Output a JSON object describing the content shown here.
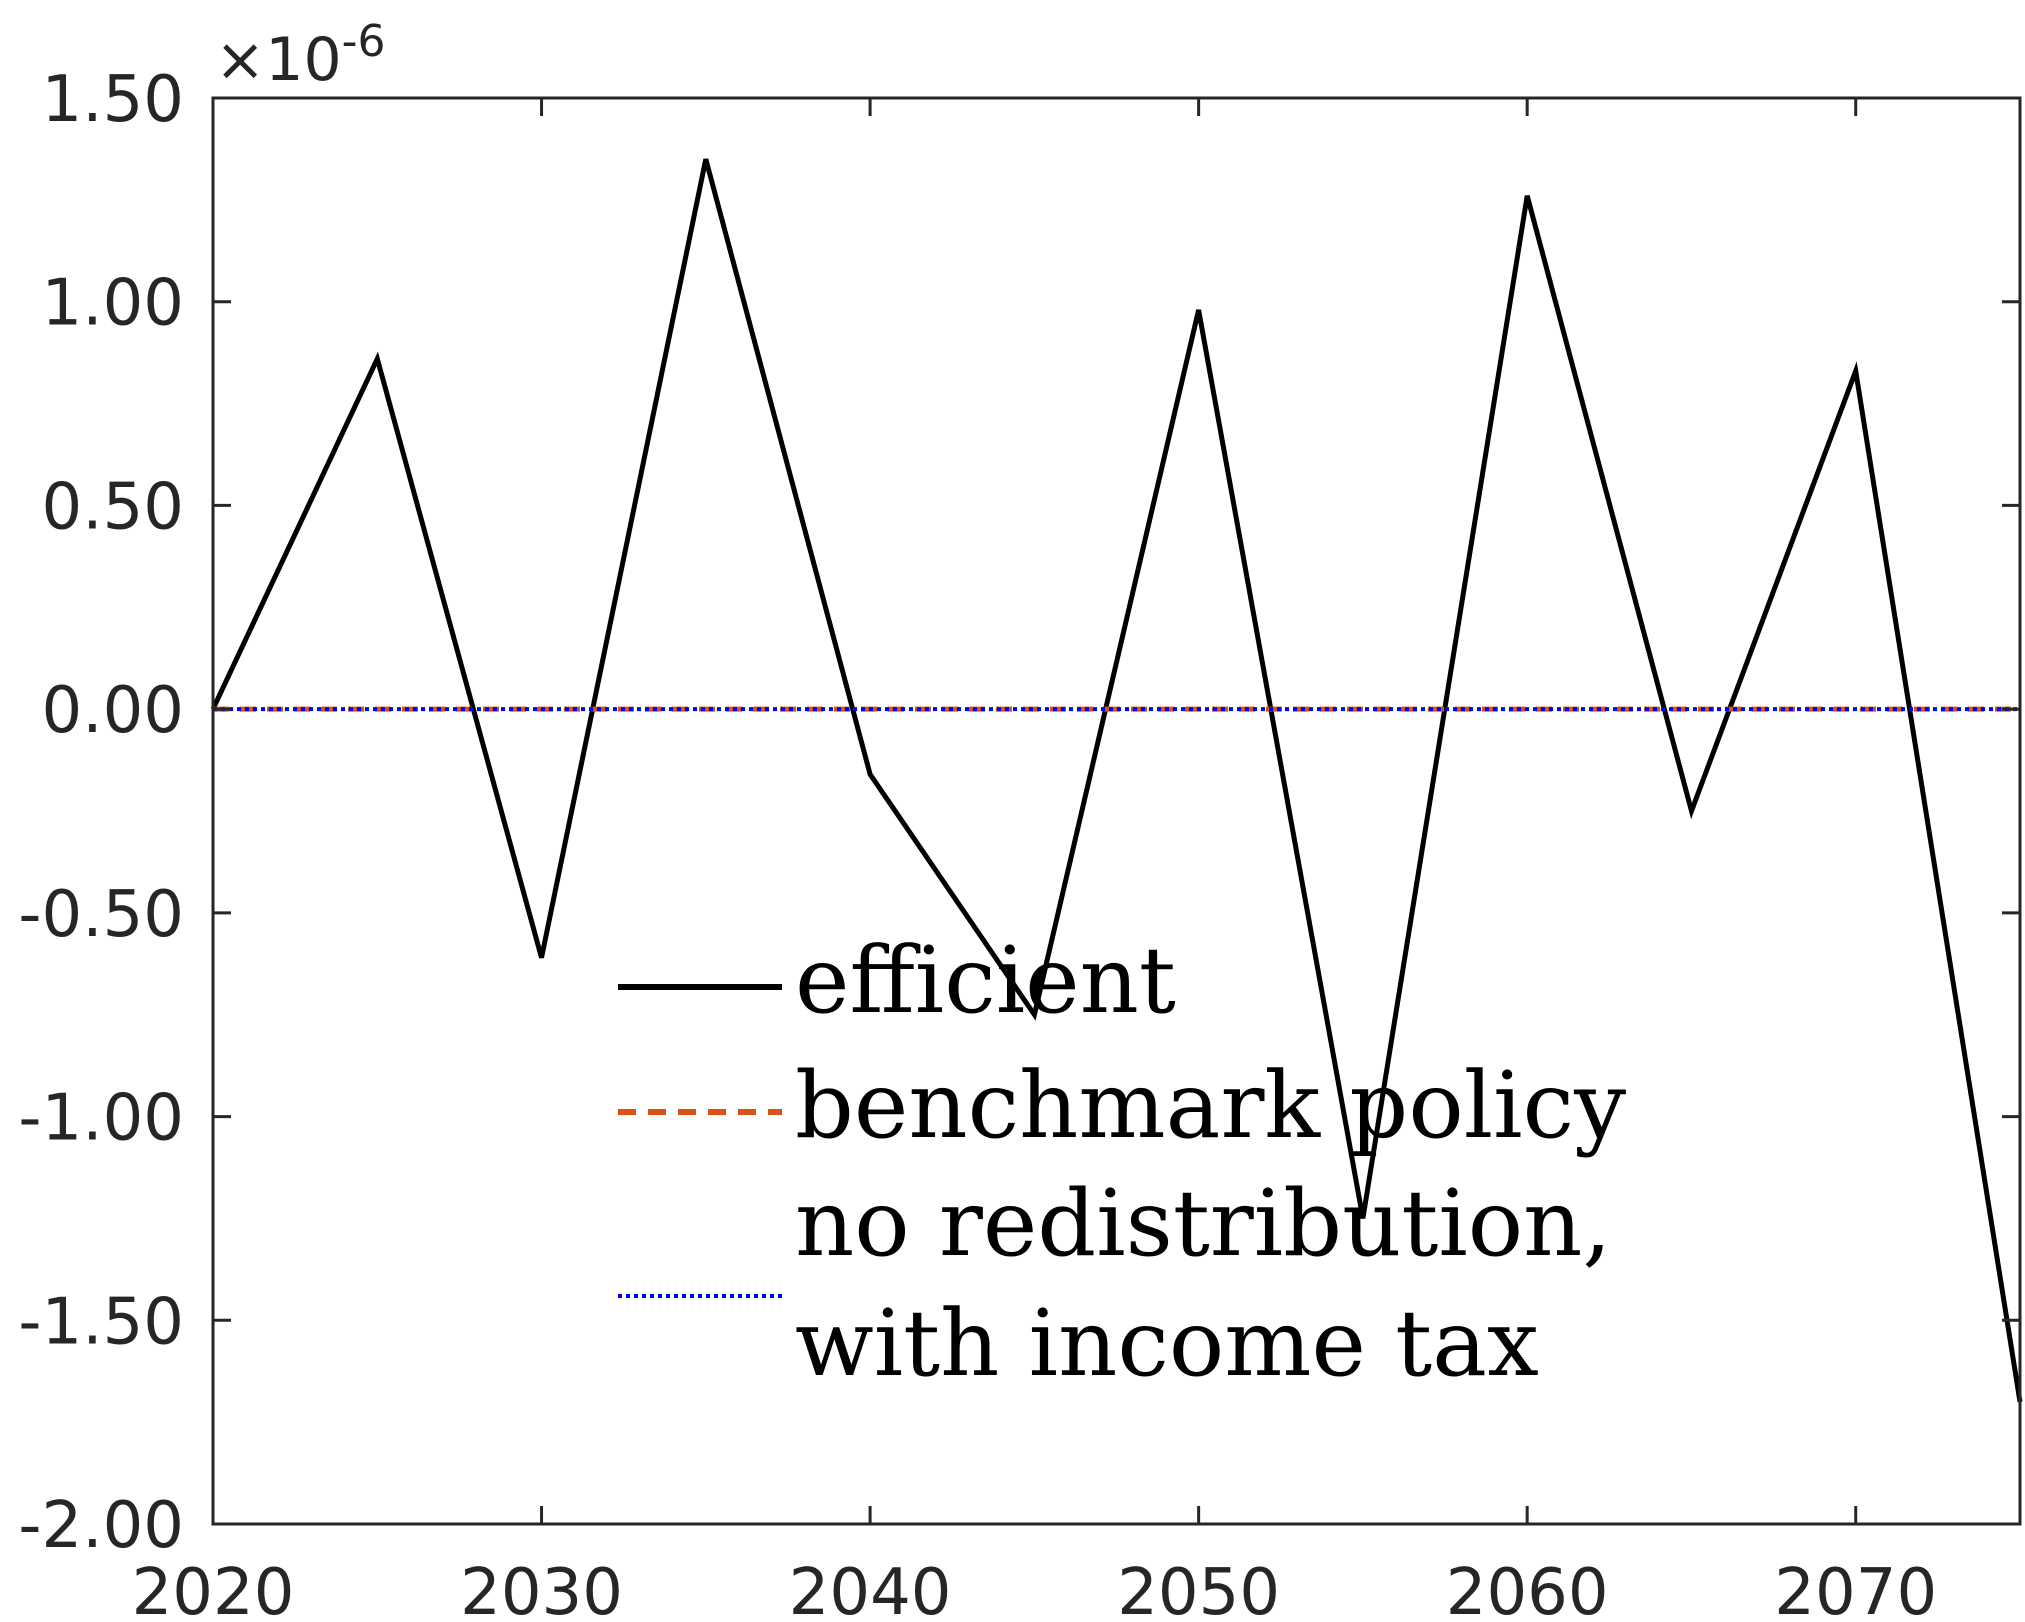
{
  "chart_data": {
    "type": "line",
    "title": "",
    "xlabel": "",
    "ylabel": "",
    "y_multiplier_prefix": "×10",
    "y_multiplier_exponent": "-6",
    "xlim": [
      2020,
      2075
    ],
    "ylim": [
      -2.0,
      1.5
    ],
    "x_ticks": [
      2020,
      2030,
      2040,
      2050,
      2060,
      2070
    ],
    "x_tick_labels": [
      "2020",
      "2030",
      "2040",
      "2050",
      "2060",
      "2070"
    ],
    "y_ticks": [
      1.5,
      1.0,
      0.5,
      0.0,
      -0.5,
      -1.0,
      -1.5,
      -2.0
    ],
    "y_tick_labels": [
      "1.50",
      "1.00",
      "0.50",
      "0.00",
      "-0.50",
      "-1.00",
      "-1.50",
      "-2.00"
    ],
    "grid": false,
    "legend_position": "center",
    "series": [
      {
        "name": "efficient",
        "color": "#000000",
        "style": "solid",
        "x": [
          2020,
          2025,
          2030,
          2035,
          2040,
          2045,
          2050,
          2055,
          2060,
          2065,
          2070,
          2075
        ],
        "y": [
          0.0,
          0.86,
          -0.61,
          1.35,
          -0.16,
          -0.75,
          0.98,
          -1.25,
          1.26,
          -0.25,
          0.83,
          -1.7
        ]
      },
      {
        "name": "benchmark policy",
        "color": "#D95319",
        "style": "dashed",
        "x": [
          2020,
          2025,
          2030,
          2035,
          2040,
          2045,
          2050,
          2055,
          2060,
          2065,
          2070,
          2075
        ],
        "y": [
          0,
          0,
          0,
          0,
          0,
          0,
          0,
          0,
          0,
          0,
          0,
          0
        ]
      },
      {
        "name_lines": [
          "no redistribution,",
          "with income tax"
        ],
        "color": "#0000FF",
        "style": "dotted",
        "x": [
          2020,
          2025,
          2030,
          2035,
          2040,
          2045,
          2050,
          2055,
          2060,
          2065,
          2070,
          2075
        ],
        "y": [
          0,
          0,
          0,
          0,
          0,
          0,
          0,
          0,
          0,
          0,
          0,
          0
        ]
      }
    ]
  }
}
